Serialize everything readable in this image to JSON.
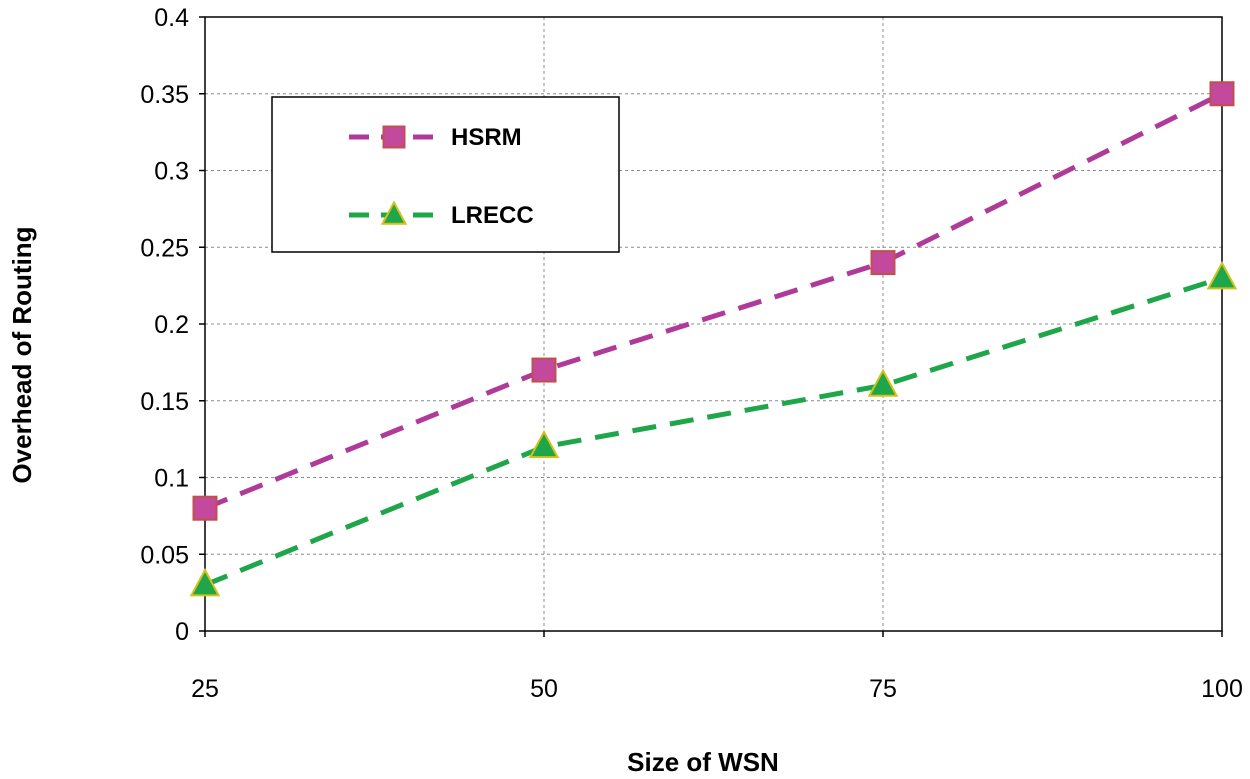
{
  "chart_data": {
    "type": "line",
    "title": "",
    "xlabel": "Size of WSN",
    "ylabel": "Overhead of Routing",
    "x": [
      25,
      50,
      75,
      100
    ],
    "x_tick_labels": [
      "25",
      "50",
      "75",
      "100"
    ],
    "y_tick_labels": [
      "0",
      "0.05",
      "0.1",
      "0.15",
      "0.2",
      "0.25",
      "0.3",
      "0.35",
      "0.4"
    ],
    "ylim": [
      0,
      0.4
    ],
    "grid": true,
    "legend_position": "top-left",
    "series": [
      {
        "name": "HSRM",
        "values": [
          0.08,
          0.17,
          0.24,
          0.35
        ],
        "line_color": "#b03a9a",
        "marker": "square",
        "marker_fill": "#c3499c",
        "marker_stroke": "#c0504d"
      },
      {
        "name": "LRECC",
        "values": [
          0.03,
          0.12,
          0.16,
          0.23
        ],
        "line_color": "#1fa64a",
        "marker": "triangle",
        "marker_fill": "#1fa64a",
        "marker_stroke": "#d4c21a"
      }
    ]
  }
}
